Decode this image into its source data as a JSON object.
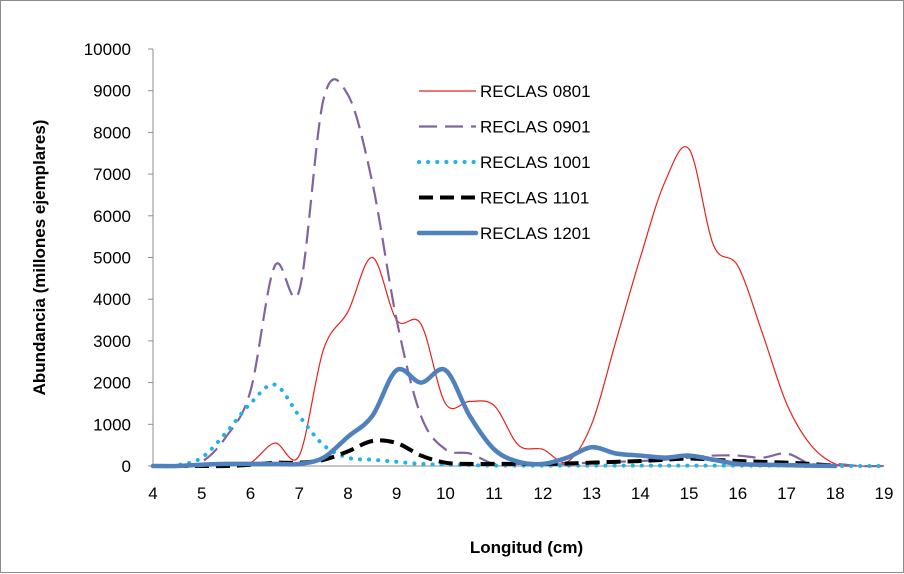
{
  "chart_data": {
    "type": "line",
    "xlabel": "Longitud (cm)",
    "ylabel": "Abundancia (millones ejemplares)",
    "xlim": [
      4,
      19
    ],
    "ylim": [
      0,
      10000
    ],
    "x_ticks": [
      "4",
      "5",
      "6",
      "7",
      "8",
      "9",
      "10",
      "11",
      "12",
      "13",
      "14",
      "15",
      "16",
      "17",
      "18",
      "19"
    ],
    "y_ticks": [
      "0",
      "1000",
      "2000",
      "3000",
      "4000",
      "5000",
      "6000",
      "7000",
      "8000",
      "9000",
      "10000"
    ],
    "grid": false,
    "legend_position": "top-center",
    "series": [
      {
        "name": "RECLAS 0801",
        "color": "#e8211b",
        "style": "thin-solid",
        "x": [
          4,
          4.5,
          5,
          5.5,
          6,
          6.5,
          7,
          7.5,
          8,
          8.5,
          9,
          9.5,
          10,
          10.5,
          11,
          11.5,
          12,
          12.5,
          13,
          13.5,
          14,
          14.5,
          15,
          15.5,
          16,
          16.5,
          17,
          17.5,
          18,
          18.5,
          19
        ],
        "y": [
          0,
          0,
          20,
          50,
          80,
          550,
          250,
          2800,
          3700,
          5000,
          3500,
          3400,
          1500,
          1550,
          1450,
          500,
          400,
          100,
          1000,
          3000,
          5000,
          6800,
          7600,
          5300,
          4800,
          3200,
          1500,
          500,
          50,
          0,
          0
        ]
      },
      {
        "name": "RECLAS 0901",
        "color": "#8064a2",
        "style": "long-dash",
        "x": [
          4,
          4.5,
          5,
          5.5,
          6,
          6.5,
          7,
          7.5,
          8,
          8.5,
          9,
          9.5,
          10,
          10.5,
          11,
          11.5,
          12,
          12.5,
          13,
          13.5,
          14,
          14.5,
          15,
          15.5,
          16,
          16.5,
          17,
          17.5,
          18,
          18.5,
          19
        ],
        "y": [
          0,
          0,
          100,
          700,
          1800,
          4800,
          4200,
          8800,
          8900,
          6800,
          3500,
          1200,
          400,
          300,
          50,
          50,
          30,
          50,
          80,
          100,
          120,
          150,
          200,
          250,
          250,
          200,
          300,
          50,
          50,
          0,
          0
        ]
      },
      {
        "name": "RECLAS 1001",
        "color": "#1fb3e6",
        "style": "dotted",
        "x": [
          4,
          4.5,
          5,
          5.5,
          6,
          6.5,
          7,
          7.5,
          8,
          8.5,
          9,
          9.5,
          10,
          10.5,
          11,
          11.5,
          12,
          12.5,
          13,
          13.5,
          14,
          14.5,
          15,
          15.5,
          16,
          16.5,
          17,
          17.5,
          18,
          18.5,
          19
        ],
        "y": [
          0,
          20,
          200,
          800,
          1500,
          1950,
          1200,
          500,
          200,
          150,
          100,
          50,
          30,
          20,
          10,
          10,
          10,
          10,
          10,
          10,
          10,
          10,
          10,
          10,
          10,
          10,
          10,
          0,
          0,
          0,
          0
        ]
      },
      {
        "name": "RECLAS 1101",
        "color": "#000000",
        "style": "thick-dash",
        "x": [
          4,
          4.5,
          5,
          5.5,
          6,
          6.5,
          7,
          7.5,
          8,
          8.5,
          9,
          9.5,
          10,
          10.5,
          11,
          11.5,
          12,
          12.5,
          13,
          13.5,
          14,
          14.5,
          15,
          15.5,
          16,
          16.5,
          17,
          17.5,
          18
        ],
        "y": [
          0,
          0,
          0,
          0,
          30,
          80,
          80,
          150,
          350,
          600,
          550,
          250,
          80,
          50,
          50,
          50,
          50,
          60,
          80,
          100,
          120,
          150,
          180,
          150,
          120,
          100,
          80,
          50,
          0
        ]
      },
      {
        "name": "RECLAS 1201",
        "color": "#4f81bd",
        "style": "thick-solid",
        "x": [
          4,
          4.5,
          5,
          5.5,
          6,
          6.5,
          7,
          7.5,
          8,
          8.5,
          9,
          9.5,
          10,
          10.5,
          11,
          11.5,
          12,
          12.5,
          13,
          13.5,
          14,
          14.5,
          15,
          15.5,
          16,
          16.5,
          17,
          17.5,
          18
        ],
        "y": [
          0,
          0,
          30,
          50,
          50,
          50,
          50,
          200,
          700,
          1200,
          2300,
          2000,
          2300,
          1200,
          400,
          100,
          50,
          200,
          450,
          300,
          250,
          200,
          250,
          150,
          50,
          30,
          20,
          10,
          0
        ]
      }
    ]
  }
}
